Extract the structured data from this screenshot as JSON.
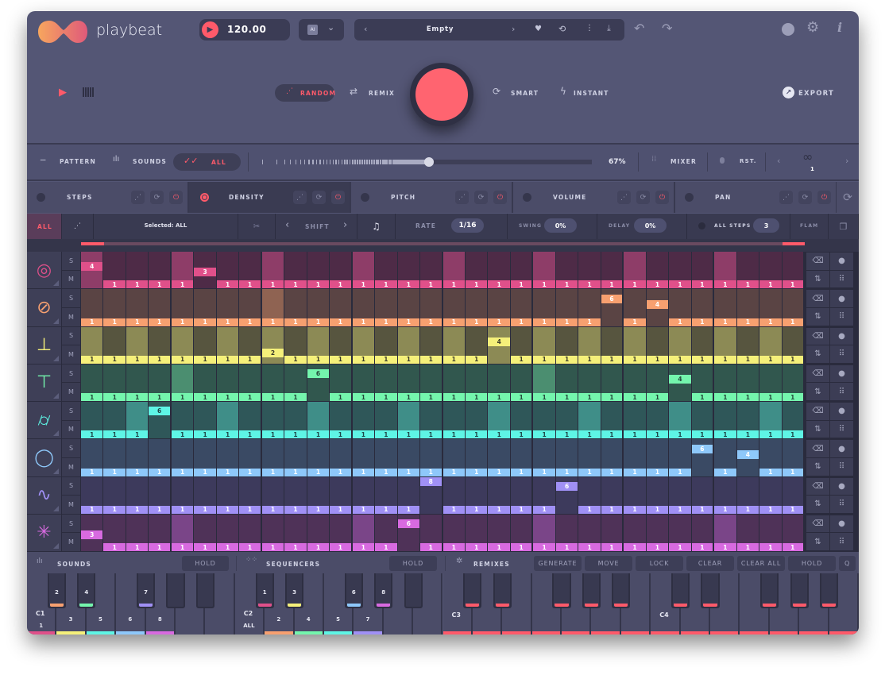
{
  "app": {
    "name": "playbeat"
  },
  "header": {
    "bpm": "120.00",
    "ai_label": "AI",
    "preset": "Empty"
  },
  "generate": {
    "random": "RANDOM",
    "remix": "REMIX",
    "smart": "SMART",
    "instant": "INSTANT",
    "export": "EXPORT"
  },
  "modebar": {
    "pattern": "PATTERN",
    "sounds": "SOUNDS",
    "all": "ALL",
    "amount_percent": 67,
    "amount_label": "67%",
    "mixer": "MIXER",
    "reset": "RST.",
    "loop_count": "1"
  },
  "tabs": [
    {
      "label": "STEPS",
      "active": false
    },
    {
      "label": "DENSITY",
      "active": true
    },
    {
      "label": "PITCH",
      "active": false
    },
    {
      "label": "VOLUME",
      "active": false
    },
    {
      "label": "PAN",
      "active": false
    }
  ],
  "seqbar": {
    "all": "ALL",
    "selected": "Selected: ALL",
    "shift": "SHIFT",
    "rate_label": "RATE",
    "rate": "1/16",
    "swing_label": "SWING",
    "swing": "0%",
    "delay_label": "DELAY",
    "delay": "0%",
    "all_steps_label": "ALL STEPS",
    "all_steps": "3",
    "flam": "FLAM"
  },
  "grid": {
    "solo_label": "S",
    "mute_label": "M",
    "tracks": [
      {
        "icon": "kick-drum-icon",
        "color": "#e0508a",
        "dark": "#4e2b47",
        "accent": "#8e3d68",
        "text": "#ffffff",
        "values": [
          4,
          1,
          1,
          1,
          1,
          3,
          1,
          1,
          1,
          1,
          1,
          1,
          1,
          1,
          1,
          1,
          1,
          1,
          1,
          1,
          1,
          1,
          1,
          1,
          1,
          1,
          1,
          1,
          1,
          1,
          1,
          1
        ],
        "accents": [
          0,
          4,
          8,
          12,
          16,
          20,
          24,
          28
        ]
      },
      {
        "icon": "snare-icon",
        "color": "#f7a070",
        "dark": "#5a4444",
        "accent": "#8f6352",
        "text": "#ffffff",
        "values": [
          1,
          1,
          1,
          1,
          1,
          1,
          1,
          1,
          1,
          1,
          1,
          1,
          1,
          1,
          1,
          1,
          1,
          1,
          1,
          1,
          1,
          1,
          1,
          6,
          1,
          4,
          1,
          1,
          1,
          1,
          1,
          1
        ],
        "accents": [
          8
        ]
      },
      {
        "icon": "hihat-closed-icon",
        "color": "#f5f07a",
        "dark": "#57553f",
        "accent": "#8c8a55",
        "text": "#3a3a2a",
        "values": [
          1,
          1,
          1,
          1,
          1,
          1,
          1,
          1,
          2,
          1,
          1,
          1,
          1,
          1,
          1,
          1,
          1,
          1,
          4,
          1,
          1,
          1,
          1,
          1,
          1,
          1,
          1,
          1,
          1,
          1,
          1,
          1
        ],
        "accents": [
          0,
          2,
          4,
          6,
          8,
          10,
          12,
          14,
          16,
          18,
          20,
          22,
          24,
          26,
          28,
          30
        ]
      },
      {
        "icon": "hihat-open-icon",
        "color": "#74f5ad",
        "dark": "#31574e",
        "accent": "#4b8e70",
        "text": "#24473a",
        "values": [
          1,
          1,
          1,
          1,
          1,
          1,
          1,
          1,
          1,
          1,
          6,
          1,
          1,
          1,
          1,
          1,
          1,
          1,
          1,
          1,
          1,
          1,
          1,
          1,
          1,
          1,
          4,
          1,
          1,
          1,
          1,
          1
        ],
        "accents": [
          4,
          20
        ]
      },
      {
        "icon": "tom-icon",
        "color": "#5ef5e5",
        "dark": "#2f5759",
        "accent": "#3f8e88",
        "text": "#1f4747",
        "values": [
          1,
          1,
          1,
          6,
          1,
          1,
          1,
          1,
          1,
          1,
          1,
          1,
          1,
          1,
          1,
          1,
          1,
          1,
          1,
          1,
          1,
          1,
          1,
          1,
          1,
          1,
          1,
          1,
          1,
          1,
          1,
          1
        ],
        "accents": [
          2,
          6,
          10,
          14,
          18,
          22,
          26,
          30
        ]
      },
      {
        "icon": "tambourine-icon",
        "color": "#8ec8fa",
        "dark": "#3a4a64",
        "accent": "#4a5f80",
        "text": "#ffffff",
        "values": [
          1,
          1,
          1,
          1,
          1,
          1,
          1,
          1,
          1,
          1,
          1,
          1,
          1,
          1,
          1,
          1,
          1,
          1,
          1,
          1,
          1,
          1,
          1,
          1,
          1,
          1,
          1,
          6,
          1,
          4,
          1,
          1
        ],
        "accents": []
      },
      {
        "icon": "synth-wave-icon",
        "color": "#a090f5",
        "dark": "#3d3a5c",
        "accent": "#564f85",
        "text": "#ffffff",
        "values": [
          1,
          1,
          1,
          1,
          1,
          1,
          1,
          1,
          1,
          1,
          1,
          1,
          1,
          1,
          1,
          8,
          1,
          1,
          1,
          1,
          1,
          6,
          1,
          1,
          1,
          1,
          1,
          1,
          1,
          1,
          1,
          1
        ],
        "accents": []
      },
      {
        "icon": "fx-sparkle-icon",
        "color": "#d86ae0",
        "dark": "#4f3258",
        "accent": "#7a4588",
        "text": "#ffffff",
        "values": [
          3,
          1,
          1,
          1,
          1,
          1,
          1,
          1,
          1,
          1,
          1,
          1,
          1,
          1,
          6,
          1,
          1,
          1,
          1,
          1,
          1,
          1,
          1,
          1,
          1,
          1,
          1,
          1,
          1,
          1,
          1,
          1
        ],
        "accents": [
          4,
          12,
          20,
          28
        ]
      }
    ]
  },
  "bottombar": {
    "sounds": "SOUNDS",
    "sounds_hold": "HOLD",
    "sequencers": "SEQUENCERS",
    "sequencers_hold": "HOLD",
    "remixes": "REMIXES",
    "generate": "GENERATE",
    "move": "MOVE",
    "lock": "LOCK",
    "clear": "CLEAR",
    "clear_all": "CLEAR ALL",
    "hold": "HOLD",
    "q": "Q"
  },
  "keyboard": {
    "octaves": [
      {
        "name": "C1",
        "white": [
          {
            "label": "1",
            "color": "#e0508a"
          },
          {
            "label": "3",
            "color": "#f5f07a"
          },
          {
            "label": "5",
            "color": "#5ef5e5"
          },
          {
            "label": "6",
            "color": "#8ec8fa"
          },
          {
            "label": "8",
            "color": "#d86ae0"
          },
          {
            "label": "",
            "color": ""
          },
          {
            "label": "",
            "color": ""
          }
        ],
        "black": [
          {
            "label": "2",
            "color": "#f7a070"
          },
          {
            "label": "4",
            "color": "#74f5ad"
          },
          {
            "label": "7",
            "color": "#a090f5"
          },
          {
            "label": "",
            "color": ""
          },
          {
            "label": "",
            "color": ""
          }
        ]
      },
      {
        "name": "C2",
        "white": [
          {
            "label": "ALL",
            "color": ""
          },
          {
            "label": "2",
            "color": "#f7a070"
          },
          {
            "label": "4",
            "color": "#74f5ad"
          },
          {
            "label": "5",
            "color": "#5ef5e5"
          },
          {
            "label": "7",
            "color": "#a090f5"
          },
          {
            "label": "",
            "color": ""
          },
          {
            "label": "",
            "color": ""
          }
        ],
        "black": [
          {
            "label": "1",
            "color": "#e0508a"
          },
          {
            "label": "3",
            "color": "#f5f07a"
          },
          {
            "label": "6",
            "color": "#8ec8fa"
          },
          {
            "label": "8",
            "color": "#d86ae0"
          },
          {
            "label": "",
            "color": ""
          }
        ]
      },
      {
        "name": "C3",
        "white": [
          {
            "label": "",
            "color": "#ff5a6a"
          },
          {
            "label": "",
            "color": "#ff5a6a"
          },
          {
            "label": "",
            "color": "#ff5a6a"
          },
          {
            "label": "",
            "color": "#ff5a6a"
          },
          {
            "label": "",
            "color": "#ff5a6a"
          },
          {
            "label": "",
            "color": "#ff5a6a"
          },
          {
            "label": "",
            "color": "#ff5a6a"
          }
        ],
        "black": [
          {
            "label": "",
            "color": "#ff5a6a"
          },
          {
            "label": "",
            "color": "#ff5a6a"
          },
          {
            "label": "",
            "color": "#ff5a6a"
          },
          {
            "label": "",
            "color": "#ff5a6a"
          },
          {
            "label": "",
            "color": "#ff5a6a"
          }
        ]
      },
      {
        "name": "C4",
        "white": [
          {
            "label": "",
            "color": "#ff5a6a"
          },
          {
            "label": "",
            "color": "#ff5a6a"
          },
          {
            "label": "",
            "color": "#ff5a6a"
          },
          {
            "label": "",
            "color": "#ff5a6a"
          },
          {
            "label": "",
            "color": "#ff5a6a"
          },
          {
            "label": "",
            "color": "#ff5a6a"
          },
          {
            "label": "",
            "color": "#ff5a6a"
          }
        ],
        "black": [
          {
            "label": "",
            "color": "#ff5a6a"
          },
          {
            "label": "",
            "color": "#ff5a6a"
          },
          {
            "label": "",
            "color": "#ff5a6a"
          },
          {
            "label": "",
            "color": "#ff5a6a"
          },
          {
            "label": "",
            "color": "#ff5a6a"
          }
        ]
      }
    ]
  },
  "colors": {
    "accent": "#ff5a6a",
    "panel": "#545675",
    "dark_panel": "#393a51"
  }
}
